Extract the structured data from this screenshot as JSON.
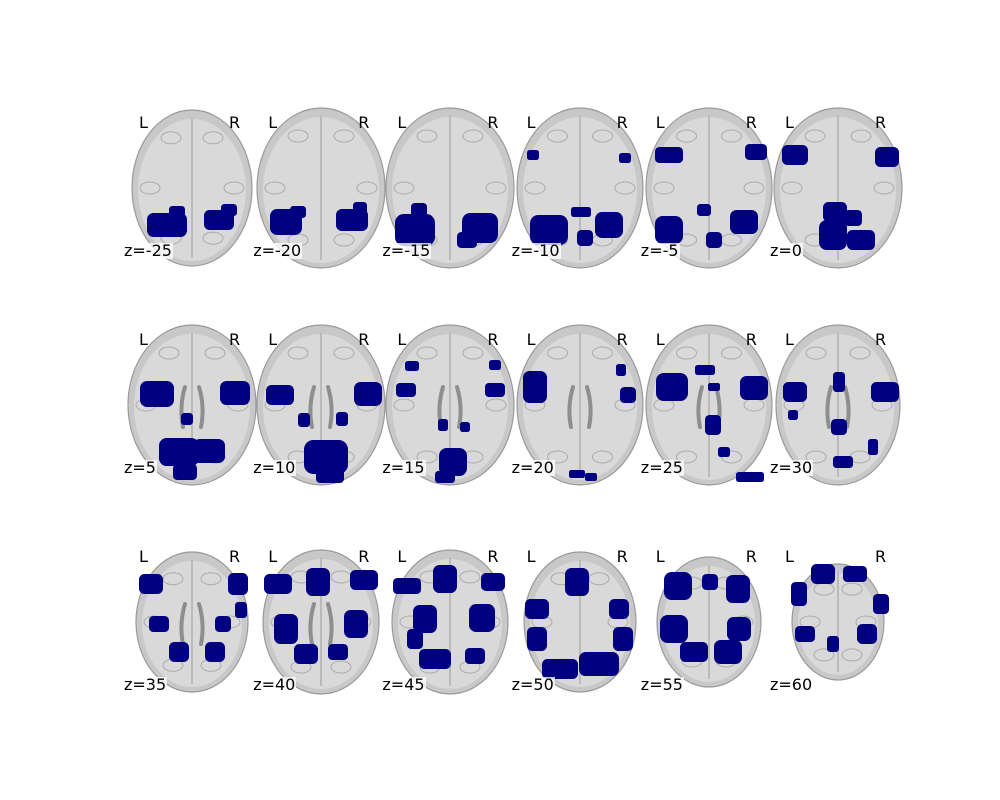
{
  "figure": {
    "orientation_left": "L",
    "orientation_right": "R",
    "overlay_color": "#000080",
    "anatomy_color": "#c8c8c8",
    "slices": [
      {
        "label": "z=-25",
        "z": -25
      },
      {
        "label": "z=-20",
        "z": -20
      },
      {
        "label": "z=-15",
        "z": -15
      },
      {
        "label": "z=-10",
        "z": -10
      },
      {
        "label": "z=-5",
        "z": -5
      },
      {
        "label": "z=0",
        "z": 0
      },
      {
        "label": "z=5",
        "z": 5
      },
      {
        "label": "z=10",
        "z": 10
      },
      {
        "label": "z=15",
        "z": 15
      },
      {
        "label": "z=20",
        "z": 20
      },
      {
        "label": "z=25",
        "z": 25
      },
      {
        "label": "z=30",
        "z": 30
      },
      {
        "label": "z=35",
        "z": 35
      },
      {
        "label": "z=40",
        "z": 40
      },
      {
        "label": "z=45",
        "z": 45
      },
      {
        "label": "z=50",
        "z": 50
      },
      {
        "label": "z=55",
        "z": 55
      },
      {
        "label": "z=60",
        "z": 60
      }
    ]
  }
}
